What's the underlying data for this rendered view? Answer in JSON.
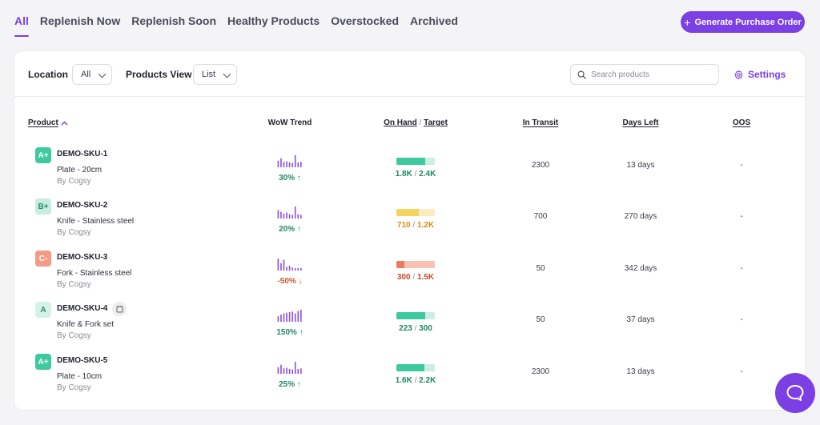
{
  "tabs": [
    {
      "label": "All",
      "active": true
    },
    {
      "label": "Replenish Now",
      "active": false
    },
    {
      "label": "Replenish Soon",
      "active": false
    },
    {
      "label": "Healthy Products",
      "active": false
    },
    {
      "label": "Overstocked",
      "active": false
    },
    {
      "label": "Archived",
      "active": false
    }
  ],
  "generate_button": {
    "plus": "+",
    "label": "Generate Purchase Order"
  },
  "filters": {
    "location_label": "Location",
    "location_value": "All",
    "view_label": "Products View",
    "view_value": "List",
    "search_placeholder": "Search products",
    "settings_label": "Settings"
  },
  "table": {
    "headers": {
      "product": "Product",
      "trend": "WoW Trend",
      "on_hand": "On Hand",
      "slash": "/",
      "target": "Target",
      "in_transit": "In Transit",
      "days_left": "Days Left",
      "oos": "OOS"
    },
    "rows": [
      {
        "grade": "A+",
        "grade_bg": "#3ec99e",
        "grade_fg": "#ffffff",
        "sku": "DEMO-SKU-1",
        "name": "Plate - 20cm",
        "by": "By Cogsy",
        "trend_bars": [
          0.55,
          0.75,
          0.45,
          0.5,
          0.4,
          0.35,
          1.0,
          0.4,
          0.45
        ],
        "pct": "30% ↑",
        "pct_color": "#1e8a5e",
        "on_hand_fraction": 0.75,
        "bar_fill": "#3ec99e",
        "bar_bg": "#cdeee2",
        "on_hand": "1.8K",
        "target": "2.4K",
        "oh_color": "#1e8a5e",
        "in_transit": "2300",
        "days_left": "13 days",
        "oos": "-",
        "badge": false
      },
      {
        "grade": "B+",
        "grade_bg": "#c7ece0",
        "grade_fg": "#2a8c6a",
        "sku": "DEMO-SKU-2",
        "name": "Knife - Stainless steel",
        "by": "By Cogsy",
        "trend_bars": [
          0.7,
          0.55,
          0.4,
          0.5,
          0.35,
          0.3,
          1.0,
          0.35,
          0.3
        ],
        "pct": "20% ↑",
        "pct_color": "#1e8a5e",
        "on_hand_fraction": 0.59,
        "bar_fill": "#f5d35f",
        "bar_bg": "#fbedbf",
        "on_hand": "710",
        "target": "1.2K",
        "oh_color": "#d88a10",
        "in_transit": "700",
        "days_left": "270 days",
        "oos": "-",
        "badge": false
      },
      {
        "grade": "C-",
        "grade_bg": "#f59a86",
        "grade_fg": "#ffffff",
        "sku": "DEMO-SKU-3",
        "name": "Fork - Stainless steel",
        "by": "By Cogsy",
        "trend_bars": [
          1.0,
          0.6,
          0.9,
          0.3,
          0.4,
          0.25,
          0.2,
          0.2,
          0.2
        ],
        "pct": "-50% ↓",
        "pct_color": "#d2542f",
        "on_hand_fraction": 0.2,
        "bar_fill": "#ec7a5e",
        "bar_bg": "#f8c2b3",
        "on_hand": "300",
        "target": "1.5K",
        "oh_color": "#c9482a",
        "in_transit": "50",
        "days_left": "342 days",
        "oos": "-",
        "badge": false
      },
      {
        "grade": "A",
        "grade_bg": "#d6f2e8",
        "grade_fg": "#2a8c6a",
        "sku": "DEMO-SKU-4",
        "name": "Knife & Fork set",
        "by": "By Cogsy",
        "trend_bars": [
          0.45,
          0.6,
          0.7,
          0.75,
          0.8,
          0.85,
          0.7,
          0.9,
          1.0
        ],
        "pct": "150% ↑",
        "pct_color": "#1e8a5e",
        "on_hand_fraction": 0.74,
        "bar_fill": "#3ec99e",
        "bar_bg": "#cdeee2",
        "on_hand": "223",
        "target": "300",
        "oh_color": "#1e8a5e",
        "in_transit": "50",
        "days_left": "37 days",
        "oos": "-",
        "badge": true
      },
      {
        "grade": "A+",
        "grade_bg": "#3ec99e",
        "grade_fg": "#ffffff",
        "sku": "DEMO-SKU-5",
        "name": "Plate - 10cm",
        "by": "By Cogsy",
        "trend_bars": [
          0.55,
          0.75,
          0.45,
          0.5,
          0.4,
          0.35,
          1.0,
          0.4,
          0.45
        ],
        "pct": "25% ↑",
        "pct_color": "#1e8a5e",
        "on_hand_fraction": 0.73,
        "bar_fill": "#3ec99e",
        "bar_bg": "#cdeee2",
        "on_hand": "1.6K",
        "target": "2.2K",
        "oh_color": "#1e8a5e",
        "in_transit": "2300",
        "days_left": "13 days",
        "oos": "-",
        "badge": false
      }
    ]
  },
  "colors": {
    "accent": "#7b3fe4",
    "trend_bar": "#8a4fe0"
  }
}
